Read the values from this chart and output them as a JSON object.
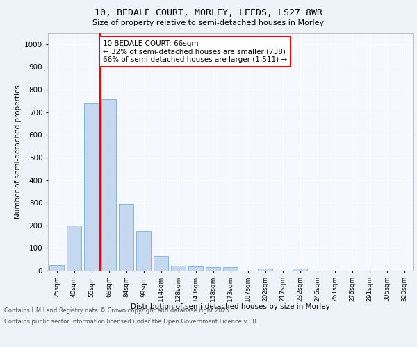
{
  "title_line1": "10, BEDALE COURT, MORLEY, LEEDS, LS27 8WR",
  "title_line2": "Size of property relative to semi-detached houses in Morley",
  "xlabel": "Distribution of semi-detached houses by size in Morley",
  "ylabel": "Number of semi-detached properties",
  "categories": [
    "25sqm",
    "40sqm",
    "55sqm",
    "69sqm",
    "84sqm",
    "99sqm",
    "114sqm",
    "128sqm",
    "143sqm",
    "158sqm",
    "173sqm",
    "187sqm",
    "202sqm",
    "217sqm",
    "232sqm",
    "246sqm",
    "261sqm",
    "276sqm",
    "291sqm",
    "305sqm",
    "320sqm"
  ],
  "values": [
    25,
    200,
    738,
    757,
    293,
    175,
    63,
    22,
    18,
    14,
    14,
    0,
    8,
    0,
    8,
    0,
    0,
    0,
    0,
    0,
    0
  ],
  "bar_color": "#c5d8f0",
  "bar_edge_color": "#7aadd4",
  "vline_color": "red",
  "annotation_text": "10 BEDALE COURT: 66sqm\n← 32% of semi-detached houses are smaller (738)\n66% of semi-detached houses are larger (1,511) →",
  "annotation_box_color": "white",
  "annotation_box_edge_color": "red",
  "ylim": [
    0,
    1050
  ],
  "yticks": [
    0,
    100,
    200,
    300,
    400,
    500,
    600,
    700,
    800,
    900,
    1000
  ],
  "footer_line1": "Contains HM Land Registry data © Crown copyright and database right 2025.",
  "footer_line2": "Contains public sector information licensed under the Open Government Licence v3.0.",
  "bg_color": "#eef2f9",
  "plot_bg_color": "#f5f8ff",
  "grid_color": "#ffffff"
}
